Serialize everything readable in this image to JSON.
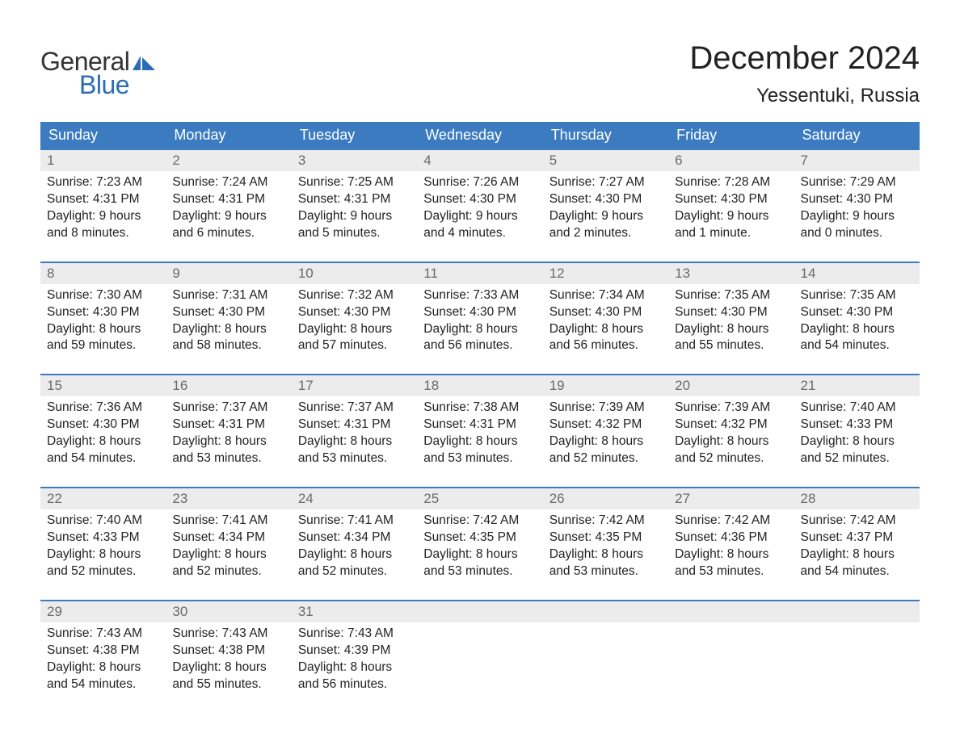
{
  "logo": {
    "text_general": "General",
    "text_blue": "Blue",
    "icon_color": "#2a6db6"
  },
  "header": {
    "month_title": "December 2024",
    "location": "Yessentuki, Russia"
  },
  "colors": {
    "header_bg": "#3c7bbf",
    "header_text": "#ffffff",
    "daynum_bg": "#ececec",
    "daynum_text": "#6a6a6a",
    "week_border": "#3c7bbf",
    "body_text": "#222222",
    "page_bg": "#ffffff"
  },
  "day_names": [
    "Sunday",
    "Monday",
    "Tuesday",
    "Wednesday",
    "Thursday",
    "Friday",
    "Saturday"
  ],
  "weeks": [
    [
      {
        "num": "1",
        "sunrise": "Sunrise: 7:23 AM",
        "sunset": "Sunset: 4:31 PM",
        "daylight1": "Daylight: 9 hours",
        "daylight2": "and 8 minutes."
      },
      {
        "num": "2",
        "sunrise": "Sunrise: 7:24 AM",
        "sunset": "Sunset: 4:31 PM",
        "daylight1": "Daylight: 9 hours",
        "daylight2": "and 6 minutes."
      },
      {
        "num": "3",
        "sunrise": "Sunrise: 7:25 AM",
        "sunset": "Sunset: 4:31 PM",
        "daylight1": "Daylight: 9 hours",
        "daylight2": "and 5 minutes."
      },
      {
        "num": "4",
        "sunrise": "Sunrise: 7:26 AM",
        "sunset": "Sunset: 4:30 PM",
        "daylight1": "Daylight: 9 hours",
        "daylight2": "and 4 minutes."
      },
      {
        "num": "5",
        "sunrise": "Sunrise: 7:27 AM",
        "sunset": "Sunset: 4:30 PM",
        "daylight1": "Daylight: 9 hours",
        "daylight2": "and 2 minutes."
      },
      {
        "num": "6",
        "sunrise": "Sunrise: 7:28 AM",
        "sunset": "Sunset: 4:30 PM",
        "daylight1": "Daylight: 9 hours",
        "daylight2": "and 1 minute."
      },
      {
        "num": "7",
        "sunrise": "Sunrise: 7:29 AM",
        "sunset": "Sunset: 4:30 PM",
        "daylight1": "Daylight: 9 hours",
        "daylight2": "and 0 minutes."
      }
    ],
    [
      {
        "num": "8",
        "sunrise": "Sunrise: 7:30 AM",
        "sunset": "Sunset: 4:30 PM",
        "daylight1": "Daylight: 8 hours",
        "daylight2": "and 59 minutes."
      },
      {
        "num": "9",
        "sunrise": "Sunrise: 7:31 AM",
        "sunset": "Sunset: 4:30 PM",
        "daylight1": "Daylight: 8 hours",
        "daylight2": "and 58 minutes."
      },
      {
        "num": "10",
        "sunrise": "Sunrise: 7:32 AM",
        "sunset": "Sunset: 4:30 PM",
        "daylight1": "Daylight: 8 hours",
        "daylight2": "and 57 minutes."
      },
      {
        "num": "11",
        "sunrise": "Sunrise: 7:33 AM",
        "sunset": "Sunset: 4:30 PM",
        "daylight1": "Daylight: 8 hours",
        "daylight2": "and 56 minutes."
      },
      {
        "num": "12",
        "sunrise": "Sunrise: 7:34 AM",
        "sunset": "Sunset: 4:30 PM",
        "daylight1": "Daylight: 8 hours",
        "daylight2": "and 56 minutes."
      },
      {
        "num": "13",
        "sunrise": "Sunrise: 7:35 AM",
        "sunset": "Sunset: 4:30 PM",
        "daylight1": "Daylight: 8 hours",
        "daylight2": "and 55 minutes."
      },
      {
        "num": "14",
        "sunrise": "Sunrise: 7:35 AM",
        "sunset": "Sunset: 4:30 PM",
        "daylight1": "Daylight: 8 hours",
        "daylight2": "and 54 minutes."
      }
    ],
    [
      {
        "num": "15",
        "sunrise": "Sunrise: 7:36 AM",
        "sunset": "Sunset: 4:30 PM",
        "daylight1": "Daylight: 8 hours",
        "daylight2": "and 54 minutes."
      },
      {
        "num": "16",
        "sunrise": "Sunrise: 7:37 AM",
        "sunset": "Sunset: 4:31 PM",
        "daylight1": "Daylight: 8 hours",
        "daylight2": "and 53 minutes."
      },
      {
        "num": "17",
        "sunrise": "Sunrise: 7:37 AM",
        "sunset": "Sunset: 4:31 PM",
        "daylight1": "Daylight: 8 hours",
        "daylight2": "and 53 minutes."
      },
      {
        "num": "18",
        "sunrise": "Sunrise: 7:38 AM",
        "sunset": "Sunset: 4:31 PM",
        "daylight1": "Daylight: 8 hours",
        "daylight2": "and 53 minutes."
      },
      {
        "num": "19",
        "sunrise": "Sunrise: 7:39 AM",
        "sunset": "Sunset: 4:32 PM",
        "daylight1": "Daylight: 8 hours",
        "daylight2": "and 52 minutes."
      },
      {
        "num": "20",
        "sunrise": "Sunrise: 7:39 AM",
        "sunset": "Sunset: 4:32 PM",
        "daylight1": "Daylight: 8 hours",
        "daylight2": "and 52 minutes."
      },
      {
        "num": "21",
        "sunrise": "Sunrise: 7:40 AM",
        "sunset": "Sunset: 4:33 PM",
        "daylight1": "Daylight: 8 hours",
        "daylight2": "and 52 minutes."
      }
    ],
    [
      {
        "num": "22",
        "sunrise": "Sunrise: 7:40 AM",
        "sunset": "Sunset: 4:33 PM",
        "daylight1": "Daylight: 8 hours",
        "daylight2": "and 52 minutes."
      },
      {
        "num": "23",
        "sunrise": "Sunrise: 7:41 AM",
        "sunset": "Sunset: 4:34 PM",
        "daylight1": "Daylight: 8 hours",
        "daylight2": "and 52 minutes."
      },
      {
        "num": "24",
        "sunrise": "Sunrise: 7:41 AM",
        "sunset": "Sunset: 4:34 PM",
        "daylight1": "Daylight: 8 hours",
        "daylight2": "and 52 minutes."
      },
      {
        "num": "25",
        "sunrise": "Sunrise: 7:42 AM",
        "sunset": "Sunset: 4:35 PM",
        "daylight1": "Daylight: 8 hours",
        "daylight2": "and 53 minutes."
      },
      {
        "num": "26",
        "sunrise": "Sunrise: 7:42 AM",
        "sunset": "Sunset: 4:35 PM",
        "daylight1": "Daylight: 8 hours",
        "daylight2": "and 53 minutes."
      },
      {
        "num": "27",
        "sunrise": "Sunrise: 7:42 AM",
        "sunset": "Sunset: 4:36 PM",
        "daylight1": "Daylight: 8 hours",
        "daylight2": "and 53 minutes."
      },
      {
        "num": "28",
        "sunrise": "Sunrise: 7:42 AM",
        "sunset": "Sunset: 4:37 PM",
        "daylight1": "Daylight: 8 hours",
        "daylight2": "and 54 minutes."
      }
    ],
    [
      {
        "num": "29",
        "sunrise": "Sunrise: 7:43 AM",
        "sunset": "Sunset: 4:38 PM",
        "daylight1": "Daylight: 8 hours",
        "daylight2": "and 54 minutes."
      },
      {
        "num": "30",
        "sunrise": "Sunrise: 7:43 AM",
        "sunset": "Sunset: 4:38 PM",
        "daylight1": "Daylight: 8 hours",
        "daylight2": "and 55 minutes."
      },
      {
        "num": "31",
        "sunrise": "Sunrise: 7:43 AM",
        "sunset": "Sunset: 4:39 PM",
        "daylight1": "Daylight: 8 hours",
        "daylight2": "and 56 minutes."
      },
      {
        "empty": true
      },
      {
        "empty": true
      },
      {
        "empty": true
      },
      {
        "empty": true
      }
    ]
  ]
}
